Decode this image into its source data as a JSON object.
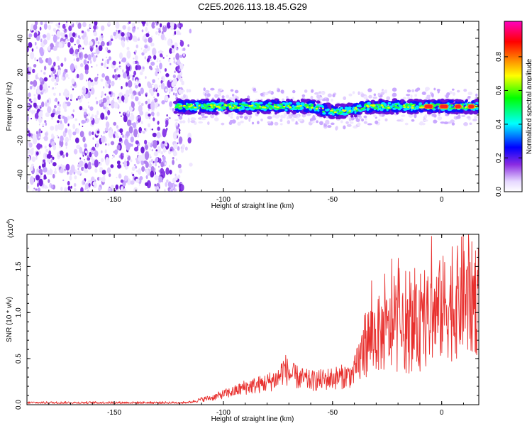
{
  "chart_data": [
    {
      "type": "heatmap",
      "title": "C2E5.2026.113.18.45.G29",
      "xlabel": "Height of straight line (km)",
      "ylabel": "Frequency (Hz)",
      "xlim": [
        -190,
        17
      ],
      "ylim": [
        -50,
        50
      ],
      "xticks": [
        -150,
        -100,
        -50,
        0
      ],
      "yticks": [
        -40,
        -20,
        0,
        20,
        40
      ],
      "noise_region": [
        -190,
        -118
      ],
      "signal_region": [
        -122,
        17
      ],
      "signal_center_hz": 0,
      "signal_bandwidth_hz": 8,
      "colorbar": {
        "label": "Normalized spectral amplitude",
        "range": [
          0,
          1
        ],
        "ticks": [
          "0.0",
          "0.2",
          "0.4",
          "0.6",
          "0.8"
        ],
        "colors": [
          "#ffffff",
          "#8a2be2",
          "#0000ff",
          "#00ffff",
          "#00ff00",
          "#ffff00",
          "#ff8000",
          "#ff0000",
          "#ff00c0"
        ]
      }
    },
    {
      "type": "line",
      "xlabel": "Height of straight line (km)",
      "ylabel": "SNR (10 * v/v)",
      "exponent_label": "(x10",
      "exponent_power": "4",
      "exponent_close": ")",
      "xlim": [
        -190,
        17
      ],
      "ylim": [
        0,
        1.85
      ],
      "xticks": [
        -150,
        -100,
        -50,
        0
      ],
      "yticks": [
        "0.0",
        "0.5",
        "1.0",
        "1.5"
      ],
      "color": "#e8302e",
      "series": [
        {
          "name": "SNR",
          "x": [
            -190,
            -180,
            -170,
            -160,
            -150,
            -140,
            -130,
            -120,
            -115,
            -110,
            -105,
            -100,
            -95,
            -90,
            -85,
            -80,
            -75,
            -72,
            -70,
            -65,
            -60,
            -55,
            -50,
            -45,
            -40,
            -37,
            -35,
            -32,
            -30,
            -25,
            -20,
            -15,
            -12,
            -10,
            -8,
            -5,
            -2,
            0,
            3,
            5,
            8,
            10,
            12,
            15,
            17
          ],
          "values": [
            0.01,
            0.01,
            0.01,
            0.01,
            0.01,
            0.01,
            0.02,
            0.02,
            0.03,
            0.06,
            0.08,
            0.12,
            0.15,
            0.2,
            0.22,
            0.25,
            0.3,
            0.42,
            0.35,
            0.3,
            0.27,
            0.28,
            0.3,
            0.32,
            0.35,
            0.55,
            0.7,
            0.78,
            0.8,
            0.82,
            0.85,
            0.8,
            0.9,
            0.85,
            0.9,
            1.0,
            1.05,
            1.1,
            1.15,
            1.1,
            1.2,
            1.3,
            1.15,
            1.25,
            1.2
          ]
        }
      ]
    }
  ]
}
